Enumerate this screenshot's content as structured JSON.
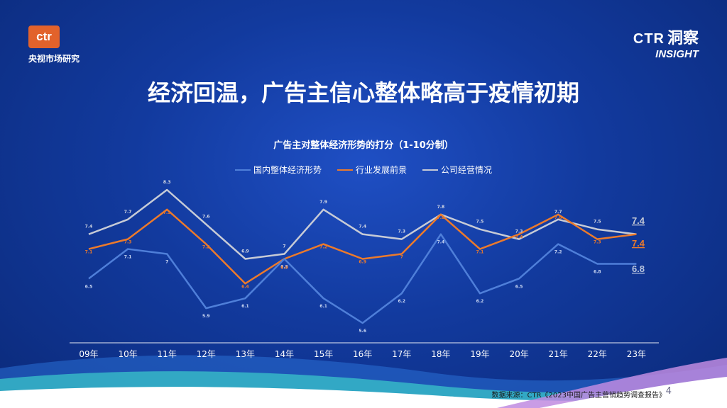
{
  "brand": {
    "logo_text": "ctr",
    "logo_sub": "央视市场研究",
    "insight_ctr": "CTR",
    "insight_cn": "洞察",
    "insight_en": "INSIGHT"
  },
  "title": "经济回温，广告主信心整体略高于疫情初期",
  "footer": {
    "source": "数据来源：CTR《2023中国广告主营销趋势调查报告》",
    "page": "4"
  },
  "colors": {
    "series1": "#4f7fd9",
    "series2": "#ec7a2b",
    "series3": "#c7cbd6"
  },
  "chart_data": {
    "type": "line",
    "title": "广告主对整体经济形势的打分（1-10分制）",
    "categories": [
      "09年",
      "10年",
      "11年",
      "12年",
      "13年",
      "14年",
      "15年",
      "16年",
      "17年",
      "18年",
      "19年",
      "20年",
      "21年",
      "22年",
      "23年"
    ],
    "series": [
      {
        "name": "国内整体经济形势",
        "values": [
          6.5,
          7.1,
          7,
          5.9,
          6.1,
          6.9,
          6.1,
          5.6,
          6.2,
          7.4,
          6.2,
          6.5,
          7.2,
          6.8,
          6.8
        ]
      },
      {
        "name": "行业发展前景",
        "values": [
          7.1,
          7.3,
          7.9,
          7.2,
          6.4,
          6.9,
          7.2,
          6.9,
          7,
          7.8,
          7.1,
          7.4,
          7.8,
          7.3,
          7.4
        ]
      },
      {
        "name": "公司经营情况",
        "values": [
          7.4,
          7.7,
          8.3,
          7.6,
          6.9,
          7,
          7.9,
          7.4,
          7.3,
          7.8,
          7.5,
          7.3,
          7.7,
          7.5,
          7.4
        ]
      }
    ],
    "end_labels": [
      "6.8",
      "7.4",
      "7.4"
    ],
    "legend": "top"
  }
}
